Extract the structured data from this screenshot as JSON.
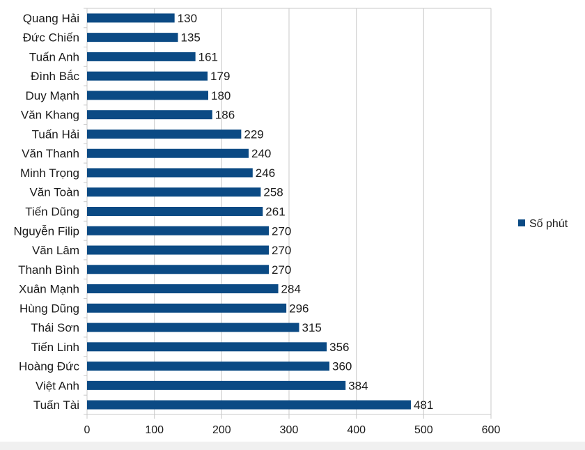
{
  "chart_data": {
    "type": "bar",
    "orientation": "horizontal",
    "categories": [
      "Quang Hải",
      "Đức Chiến",
      "Tuấn Anh",
      "Đình Bắc",
      "Duy Mạnh",
      "Văn Khang",
      "Tuấn Hải",
      "Văn Thanh",
      "Minh Trọng",
      "Văn Toàn",
      "Tiến Dũng",
      "Nguyễn Filip",
      "Văn Lâm",
      "Thanh Bình",
      "Xuân Mạnh",
      "Hùng Dũng",
      "Thái Sơn",
      "Tiến Linh",
      "Hoàng Đức",
      "Việt Anh",
      "Tuấn Tài"
    ],
    "series": [
      {
        "name": "Số phút",
        "color": "#0b4a84",
        "values": [
          130,
          135,
          161,
          179,
          180,
          186,
          229,
          240,
          246,
          258,
          261,
          270,
          270,
          270,
          284,
          296,
          315,
          356,
          360,
          384,
          481
        ]
      }
    ],
    "xlim": [
      0,
      600
    ],
    "xticks": [
      0,
      100,
      200,
      300,
      400,
      500,
      600
    ],
    "grid": "vertical",
    "legend_position": "right"
  }
}
